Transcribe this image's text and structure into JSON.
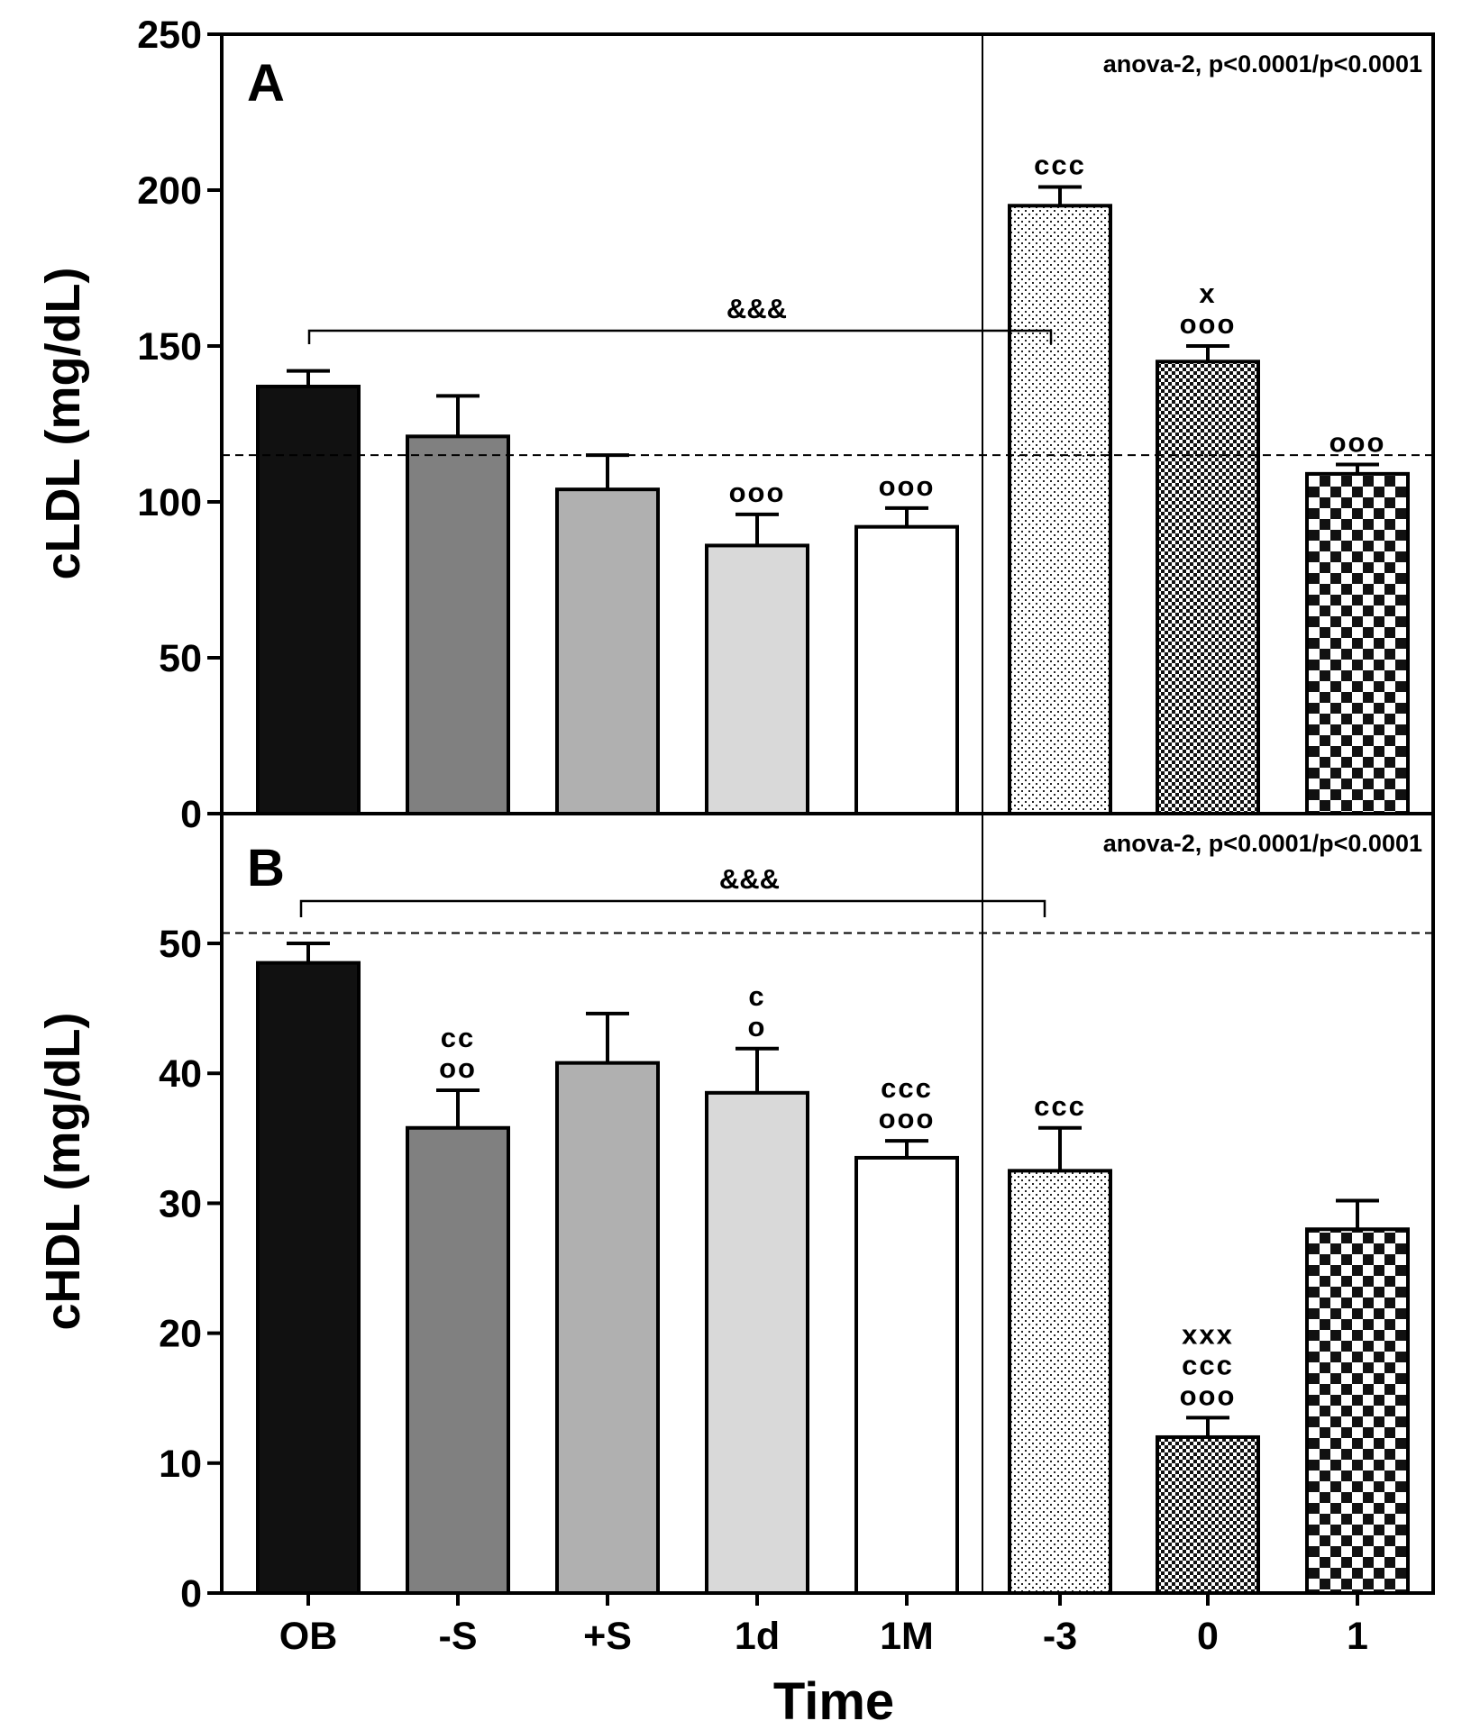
{
  "chart_data": [
    {
      "type": "bar",
      "panel_label": "A",
      "annotation": "anova-2, p<0.0001/p<0.0001",
      "ylabel": "cLDL (mg/dL)",
      "xlabel": "",
      "ylim": [
        0,
        250
      ],
      "yticks": [
        "0",
        "50",
        "100",
        "150",
        "200",
        "250"
      ],
      "categories": [
        "OB",
        "-S",
        "+S",
        "1d",
        "1M",
        "-3",
        "0",
        "1"
      ],
      "values": [
        137,
        121,
        104,
        86,
        92,
        195,
        145,
        109
      ],
      "errors": [
        5,
        13,
        11,
        10,
        6,
        6,
        5,
        3
      ],
      "significance": [
        [],
        [],
        [],
        [
          "ooo"
        ],
        [
          "ooo"
        ],
        [
          "ccc"
        ],
        [
          "x",
          "ooo"
        ],
        [
          "ooo"
        ]
      ],
      "reference_line": 115,
      "bracket": {
        "label": "&&&",
        "from": "OB",
        "to": "-3"
      }
    },
    {
      "type": "bar",
      "panel_label": "B",
      "annotation": "anova-2, p<0.0001/p<0.0001",
      "ylabel": "cHDL (mg/dL)",
      "xlabel": "Time",
      "ylim": [
        0,
        60
      ],
      "yticks": [
        "0",
        "10",
        "20",
        "30",
        "40",
        "50"
      ],
      "categories": [
        "OB",
        "-S",
        "+S",
        "1d",
        "1M",
        "-3",
        "0",
        "1"
      ],
      "values": [
        48.5,
        35.8,
        40.8,
        38.5,
        33.5,
        32.5,
        12,
        28
      ],
      "errors": [
        1.5,
        2.9,
        3.8,
        3.4,
        1.3,
        3.3,
        1.5,
        2.2
      ],
      "significance": [
        [],
        [
          "cc",
          "oo"
        ],
        [],
        [
          "c",
          "o"
        ],
        [
          "ccc",
          "ooo"
        ],
        [
          "ccc"
        ],
        [
          "xxx",
          "ccc",
          "ooo"
        ],
        []
      ],
      "reference_line": 50.8,
      "bracket": {
        "label": "&&&",
        "from": "OB",
        "to": "-3"
      }
    }
  ],
  "x_axis_label": "Time",
  "fills": [
    "#111111",
    "#808080",
    "#b0b0b0",
    "#d9d9d9",
    "#ffffff",
    "dots",
    "fine-check",
    "coarse-check"
  ]
}
